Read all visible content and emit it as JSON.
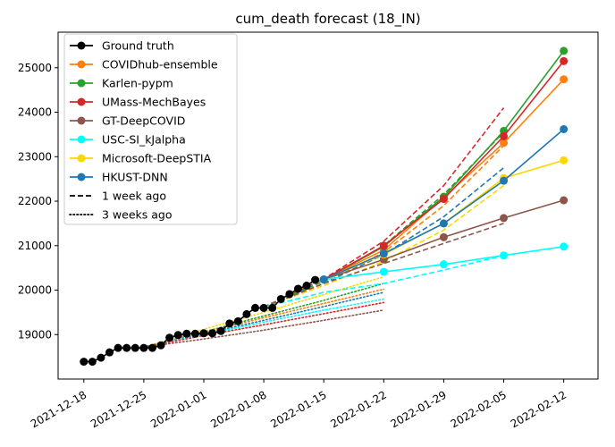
{
  "chart_data": {
    "type": "line",
    "title": "cum_death forecast (18_IN)",
    "xlabel": "",
    "ylabel": "",
    "x_range": [
      "2021-12-15",
      "2022-02-16"
    ],
    "ylim": [
      18000,
      25800
    ],
    "x_ticks": [
      "2021-12-18",
      "2021-12-25",
      "2022-01-01",
      "2022-01-08",
      "2022-01-15",
      "2022-01-22",
      "2022-01-29",
      "2022-02-05",
      "2022-02-12"
    ],
    "y_ticks": [
      19000,
      20000,
      21000,
      22000,
      23000,
      24000,
      25000
    ],
    "grid": false,
    "legend_position": "top-left",
    "legend": [
      {
        "label": "Ground truth",
        "color": "#000000",
        "style": "solid",
        "marker": true
      },
      {
        "label": "COVIDhub-ensemble",
        "color": "#ff7f0e",
        "style": "solid",
        "marker": true
      },
      {
        "label": "Karlen-pypm",
        "color": "#2ca02c",
        "style": "solid",
        "marker": true
      },
      {
        "label": "UMass-MechBayes",
        "color": "#d62728",
        "style": "solid",
        "marker": true
      },
      {
        "label": "GT-DeepCOVID",
        "color": "#8c564b",
        "style": "solid",
        "marker": true
      },
      {
        "label": "USC-SI_kJalpha",
        "color": "#00ffff",
        "style": "solid",
        "marker": true
      },
      {
        "label": "Microsoft-DeepSTIA",
        "color": "#ffd700",
        "style": "solid",
        "marker": true
      },
      {
        "label": "HKUST-DNN",
        "color": "#1f77b4",
        "style": "solid",
        "marker": true
      },
      {
        "label": "1 week ago",
        "color": "#000000",
        "style": "dashed",
        "marker": false
      },
      {
        "label": "3 weeks ago",
        "color": "#000000",
        "style": "dotted",
        "marker": false
      }
    ],
    "ground_truth": {
      "name": "Ground truth",
      "color": "#000000",
      "points": [
        [
          "2021-12-18",
          18390
        ],
        [
          "2021-12-19",
          18390
        ],
        [
          "2021-12-20",
          18480
        ],
        [
          "2021-12-21",
          18600
        ],
        [
          "2021-12-22",
          18700
        ],
        [
          "2021-12-23",
          18700
        ],
        [
          "2021-12-24",
          18700
        ],
        [
          "2021-12-25",
          18700
        ],
        [
          "2021-12-26",
          18700
        ],
        [
          "2021-12-27",
          18760
        ],
        [
          "2021-12-28",
          18930
        ],
        [
          "2021-12-29",
          18990
        ],
        [
          "2021-12-30",
          19020
        ],
        [
          "2021-12-31",
          19020
        ],
        [
          "2022-01-01",
          19030
        ],
        [
          "2022-01-02",
          19030
        ],
        [
          "2022-01-03",
          19080
        ],
        [
          "2022-01-04",
          19250
        ],
        [
          "2022-01-05",
          19300
        ],
        [
          "2022-01-06",
          19460
        ],
        [
          "2022-01-07",
          19600
        ],
        [
          "2022-01-08",
          19600
        ],
        [
          "2022-01-09",
          19600
        ],
        [
          "2022-01-10",
          19800
        ],
        [
          "2022-01-11",
          19910
        ],
        [
          "2022-01-12",
          20030
        ],
        [
          "2022-01-13",
          20100
        ],
        [
          "2022-01-14",
          20230
        ]
      ]
    },
    "forecasts": [
      {
        "name": "COVIDhub-ensemble",
        "color": "#ff7f0e",
        "points": [
          [
            "2022-01-15",
            20240
          ],
          [
            "2022-01-22",
            20900
          ],
          [
            "2022-01-29",
            22080
          ],
          [
            "2022-02-05",
            23310
          ],
          [
            "2022-02-12",
            24740
          ]
        ]
      },
      {
        "name": "Karlen-pypm",
        "color": "#2ca02c",
        "points": [
          [
            "2022-01-15",
            20240
          ],
          [
            "2022-01-22",
            20980
          ],
          [
            "2022-01-29",
            22100
          ],
          [
            "2022-02-05",
            23580
          ],
          [
            "2022-02-12",
            25380
          ]
        ]
      },
      {
        "name": "UMass-MechBayes",
        "color": "#d62728",
        "points": [
          [
            "2022-01-15",
            20240
          ],
          [
            "2022-01-22",
            21000
          ],
          [
            "2022-01-29",
            22050
          ],
          [
            "2022-02-05",
            23460
          ],
          [
            "2022-02-12",
            25150
          ]
        ]
      },
      {
        "name": "GT-DeepCOVID",
        "color": "#8c564b",
        "points": [
          [
            "2022-01-15",
            20240
          ],
          [
            "2022-01-22",
            20690
          ],
          [
            "2022-01-29",
            21190
          ],
          [
            "2022-02-05",
            21620
          ],
          [
            "2022-02-12",
            22020
          ]
        ]
      },
      {
        "name": "USC-SI_kJalpha",
        "color": "#00ffff",
        "points": [
          [
            "2022-01-15",
            20240
          ],
          [
            "2022-01-22",
            20410
          ],
          [
            "2022-01-29",
            20580
          ],
          [
            "2022-02-05",
            20780
          ],
          [
            "2022-02-12",
            20980
          ]
        ]
      },
      {
        "name": "Microsoft-DeepSTIA",
        "color": "#ffd700",
        "points": [
          [
            "2022-01-15",
            20240
          ],
          [
            "2022-01-22",
            20800
          ],
          [
            "2022-01-29",
            21500
          ],
          [
            "2022-02-05",
            22520
          ],
          [
            "2022-02-12",
            22920
          ]
        ]
      },
      {
        "name": "HKUST-DNN",
        "color": "#1f77b4",
        "points": [
          [
            "2022-01-15",
            20240
          ],
          [
            "2022-01-22",
            20820
          ],
          [
            "2022-01-29",
            21500
          ],
          [
            "2022-02-05",
            22460
          ],
          [
            "2022-02-12",
            23620
          ]
        ]
      }
    ],
    "forecasts_1_week_ago": [
      {
        "name": "UMass-MechBayes",
        "color": "#d62728",
        "points": [
          [
            "2022-01-08",
            19620
          ],
          [
            "2022-01-15",
            20250
          ],
          [
            "2022-01-22",
            21100
          ],
          [
            "2022-01-29",
            22350
          ],
          [
            "2022-02-05",
            24100
          ]
        ]
      },
      {
        "name": "Karlen-pypm",
        "color": "#2ca02c",
        "points": [
          [
            "2022-01-08",
            19620
          ],
          [
            "2022-01-15",
            20200
          ],
          [
            "2022-01-22",
            21000
          ],
          [
            "2022-01-29",
            22150
          ],
          [
            "2022-02-05",
            23550
          ]
        ]
      },
      {
        "name": "COVIDhub-ensemble",
        "color": "#ff7f0e",
        "points": [
          [
            "2022-01-08",
            19620
          ],
          [
            "2022-01-15",
            20150
          ],
          [
            "2022-01-22",
            20850
          ],
          [
            "2022-01-29",
            21900
          ],
          [
            "2022-02-05",
            23250
          ]
        ]
      },
      {
        "name": "HKUST-DNN",
        "color": "#1f77b4",
        "points": [
          [
            "2022-01-08",
            19620
          ],
          [
            "2022-01-15",
            20150
          ],
          [
            "2022-01-22",
            20800
          ],
          [
            "2022-01-29",
            21650
          ],
          [
            "2022-02-05",
            22750
          ]
        ]
      },
      {
        "name": "Microsoft-DeepSTIA",
        "color": "#ffd700",
        "points": [
          [
            "2022-01-08",
            19620
          ],
          [
            "2022-01-15",
            20100
          ],
          [
            "2022-01-22",
            20650
          ],
          [
            "2022-01-29",
            21350
          ],
          [
            "2022-02-05",
            22350
          ]
        ]
      },
      {
        "name": "GT-DeepCOVID",
        "color": "#8c564b",
        "points": [
          [
            "2022-01-08",
            19620
          ],
          [
            "2022-01-15",
            20150
          ],
          [
            "2022-01-22",
            20600
          ],
          [
            "2022-01-29",
            21050
          ],
          [
            "2022-02-05",
            21500
          ]
        ]
      },
      {
        "name": "USC-SI_kJalpha",
        "color": "#00ffff",
        "points": [
          [
            "2022-01-08",
            19620
          ],
          [
            "2022-01-15",
            19950
          ],
          [
            "2022-01-22",
            20150
          ],
          [
            "2022-01-29",
            20450
          ],
          [
            "2022-02-05",
            20780
          ]
        ]
      }
    ],
    "forecasts_3_weeks_ago": [
      {
        "name": "Microsoft-DeepSTIA",
        "color": "#ffd700",
        "points": [
          [
            "2021-12-25",
            18720
          ],
          [
            "2022-01-01",
            19120
          ],
          [
            "2022-01-08",
            19500
          ],
          [
            "2022-01-15",
            19900
          ],
          [
            "2022-01-22",
            20300
          ]
        ]
      },
      {
        "name": "Karlen-pypm",
        "color": "#2ca02c",
        "points": [
          [
            "2021-12-25",
            18720
          ],
          [
            "2022-01-01",
            19060
          ],
          [
            "2022-01-08",
            19420
          ],
          [
            "2022-01-15",
            19770
          ],
          [
            "2022-01-22",
            20150
          ]
        ]
      },
      {
        "name": "COVIDhub-ensemble",
        "color": "#ff7f0e",
        "points": [
          [
            "2021-12-25",
            18720
          ],
          [
            "2022-01-01",
            19040
          ],
          [
            "2022-01-08",
            19380
          ],
          [
            "2022-01-15",
            19700
          ],
          [
            "2022-01-22",
            20020
          ]
        ]
      },
      {
        "name": "HKUST-DNN",
        "color": "#1f77b4",
        "points": [
          [
            "2021-12-25",
            18720
          ],
          [
            "2022-01-01",
            19020
          ],
          [
            "2022-01-08",
            19320
          ],
          [
            "2022-01-15",
            19630
          ],
          [
            "2022-01-22",
            19950
          ]
        ]
      },
      {
        "name": "USC-SI_kJalpha",
        "color": "#00ffff",
        "points": [
          [
            "2021-12-25",
            18720
          ],
          [
            "2022-01-01",
            19000
          ],
          [
            "2022-01-08",
            19280
          ],
          [
            "2022-01-15",
            19550
          ],
          [
            "2022-01-22",
            19800
          ]
        ]
      },
      {
        "name": "UMass-MechBayes",
        "color": "#d62728",
        "points": [
          [
            "2021-12-25",
            18720
          ],
          [
            "2022-01-01",
            18980
          ],
          [
            "2022-01-08",
            19220
          ],
          [
            "2022-01-15",
            19470
          ],
          [
            "2022-01-22",
            19720
          ]
        ]
      },
      {
        "name": "GT-DeepCOVID",
        "color": "#8c564b",
        "points": [
          [
            "2021-12-25",
            18720
          ],
          [
            "2022-01-01",
            18900
          ],
          [
            "2022-01-08",
            19100
          ],
          [
            "2022-01-15",
            19320
          ],
          [
            "2022-01-22",
            19550
          ]
        ]
      }
    ]
  }
}
